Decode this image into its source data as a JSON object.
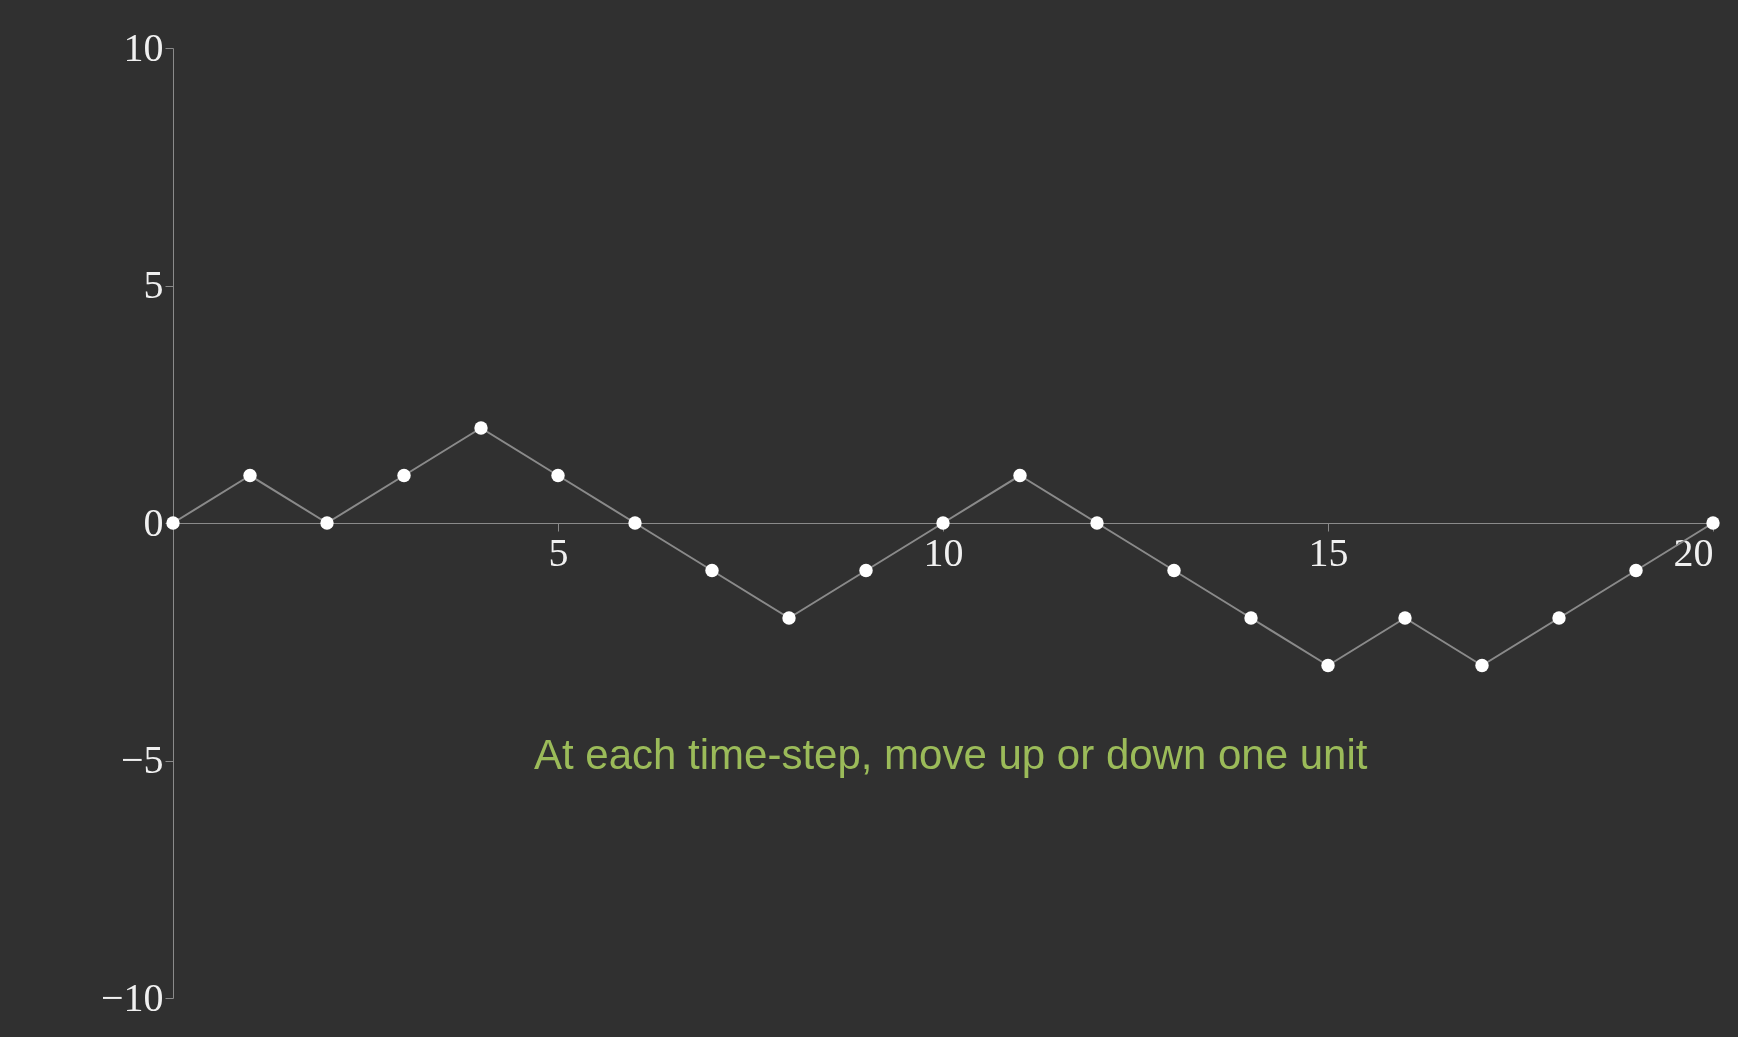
{
  "chart_data": {
    "type": "line",
    "x": [
      0,
      1,
      2,
      3,
      4,
      5,
      6,
      7,
      8,
      9,
      10,
      11,
      12,
      13,
      14,
      15,
      16,
      17,
      18,
      19,
      20
    ],
    "series": [
      {
        "color": "#8a8a8a",
        "values": [
          0,
          1,
          0,
          1,
          2,
          1,
          0,
          -1,
          -2,
          -1,
          0,
          1,
          0,
          -1,
          -2,
          -3,
          -2,
          -3,
          -2,
          -1,
          0
        ]
      }
    ],
    "xlim": [
      0,
      20
    ],
    "ylim": [
      -10,
      10
    ],
    "xticks": [
      {
        "value": 0,
        "label": null
      },
      5,
      10,
      15,
      20
    ],
    "yticks": [
      {
        "value": -10,
        "label": "−10"
      },
      {
        "value": -5,
        "label": "−5"
      },
      0,
      5,
      10
    ],
    "marker": "circle",
    "line_style": "solid",
    "grid": false,
    "annotations": [
      "At each time-step, move up or down one unit"
    ]
  }
}
